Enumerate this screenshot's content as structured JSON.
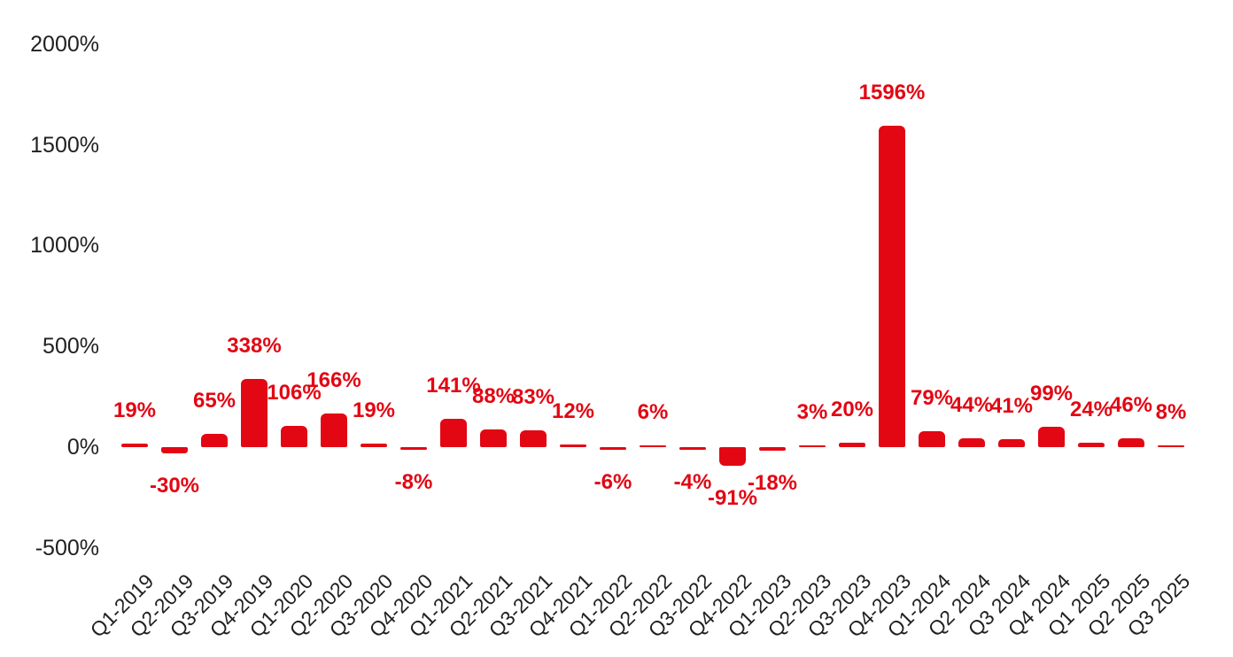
{
  "chart_data": {
    "type": "bar",
    "title": "",
    "xlabel": "",
    "ylabel": "",
    "categories": [
      "Q1-2019",
      "Q2-2019",
      "Q3-2019",
      "Q4-2019",
      "Q1-2020",
      "Q2-2020",
      "Q3-2020",
      "Q4-2020",
      "Q1-2021",
      "Q2-2021",
      "Q3-2021",
      "Q4-2021",
      "Q1-2022",
      "Q2-2022",
      "Q3-2022",
      "Q4-2022",
      "Q1-2023",
      "Q2-2023",
      "Q3-2023",
      "Q4-2023",
      "Q1-2024",
      "Q2 2024",
      "Q3 2024",
      "Q4 2024",
      "Q1 2025",
      "Q2 2025",
      "Q3 2025"
    ],
    "values": [
      19,
      -30,
      65,
      338,
      106,
      166,
      19,
      -8,
      141,
      88,
      83,
      12,
      -6,
      6,
      -4,
      -91,
      -18,
      3,
      20,
      1596,
      79,
      44,
      41,
      99,
      24,
      46,
      8
    ],
    "data_labels": [
      "19%",
      "-30%",
      "65%",
      "338%",
      "106%",
      "166%",
      "19%",
      "-8%",
      "141%",
      "88%",
      "83%",
      "12%",
      "-6%",
      "6%",
      "-4%",
      "-91%",
      "-18%",
      "3%",
      "20%",
      "1596%",
      "79%",
      "44%",
      "41%",
      "99%",
      "24%",
      "46%",
      "8%"
    ],
    "y_axis": {
      "tick_values": [
        2000,
        1500,
        1000,
        500,
        0,
        -500
      ],
      "tick_labels": [
        "2000%",
        "1500%",
        "1000%",
        "500%",
        "0%",
        "-500%"
      ]
    },
    "ylim": [
      -500,
      2000
    ],
    "grid": false,
    "legend": false,
    "x_tick_rotation_deg": 45,
    "colors": {
      "bar": "#e30613",
      "data_label": "#e30613",
      "axis_text": "#212121",
      "background": "#ffffff"
    }
  }
}
